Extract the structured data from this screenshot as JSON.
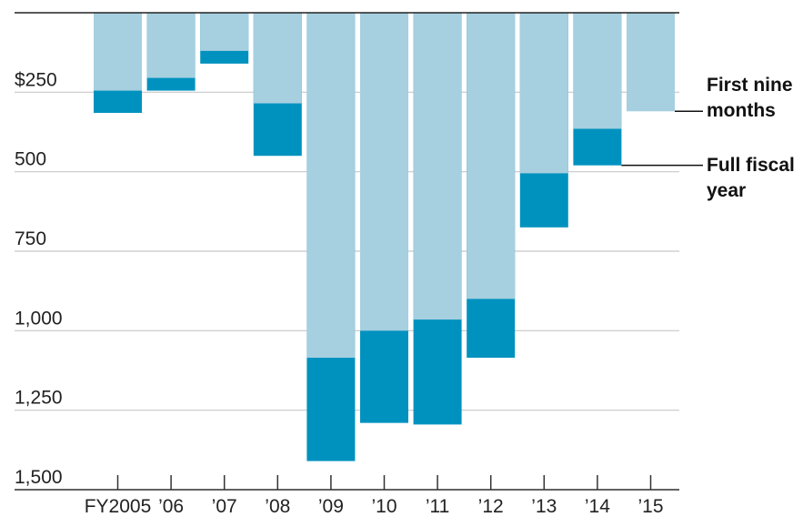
{
  "chart_data": {
    "type": "bar",
    "title": "",
    "xlabel": "",
    "ylabel": "",
    "y_direction": "downward",
    "ylim": [
      0,
      1500
    ],
    "y_ticks": [
      {
        "value": 250,
        "label": "$250"
      },
      {
        "value": 500,
        "label": "500"
      },
      {
        "value": 750,
        "label": "750"
      },
      {
        "value": 1000,
        "label": "1,000"
      },
      {
        "value": 1250,
        "label": "1,250"
      },
      {
        "value": 1500,
        "label": "1,500"
      }
    ],
    "categories": [
      "FY2005",
      "’06",
      "’07",
      "’08",
      "’09",
      "’10",
      "’11",
      "’12",
      "’13",
      "’14",
      "’15"
    ],
    "series": [
      {
        "name": "First nine months",
        "color": "#a6cfe0",
        "values": [
          245,
          205,
          120,
          285,
          1085,
          1000,
          965,
          900,
          505,
          365,
          310
        ]
      },
      {
        "name": "Full fiscal year",
        "color": "#0092bf",
        "values": [
          315,
          245,
          160,
          450,
          1410,
          1290,
          1295,
          1085,
          675,
          480,
          null
        ]
      }
    ],
    "legend": {
      "placement": "right",
      "items": [
        {
          "series": 0,
          "lines": [
            "First nine",
            "months"
          ]
        },
        {
          "series": 1,
          "lines": [
            "Full fiscal",
            "year"
          ]
        }
      ]
    },
    "grid": true
  }
}
